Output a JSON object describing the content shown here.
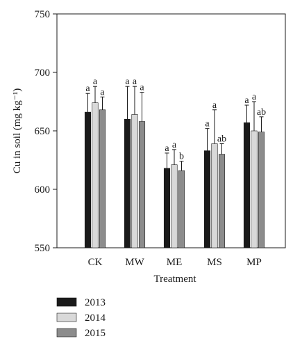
{
  "chart_data": {
    "type": "bar",
    "title": "",
    "xlabel": "Treatment",
    "ylabel": "Cu in soil (mg kg⁻¹)",
    "ylim": [
      550,
      750
    ],
    "yticks": [
      "550",
      "600",
      "650",
      "700",
      "750"
    ],
    "categories": [
      "CK",
      "MW",
      "ME",
      "MS",
      "MP"
    ],
    "series": [
      {
        "name": "2013",
        "color": "#1a1a1a",
        "values": [
          666,
          660,
          618,
          633,
          657
        ],
        "errors": [
          16,
          28,
          13,
          19,
          15
        ],
        "letters": [
          "a",
          "a",
          "a",
          "a",
          "a"
        ]
      },
      {
        "name": "2014",
        "color": "#d9d9d9",
        "values": [
          674,
          664,
          621,
          639,
          650
        ],
        "errors": [
          14,
          24,
          13,
          29,
          25
        ],
        "letters": [
          "a",
          "a",
          "a",
          "a",
          "a"
        ]
      },
      {
        "name": "2015",
        "color": "#8c8c8c",
        "values": [
          668,
          658,
          616,
          630,
          649
        ],
        "errors": [
          11,
          25,
          8,
          9,
          13
        ],
        "letters": [
          "a",
          "a",
          "b",
          "ab",
          "ab"
        ]
      }
    ],
    "grid": false,
    "legend_position": "bottom-left"
  }
}
